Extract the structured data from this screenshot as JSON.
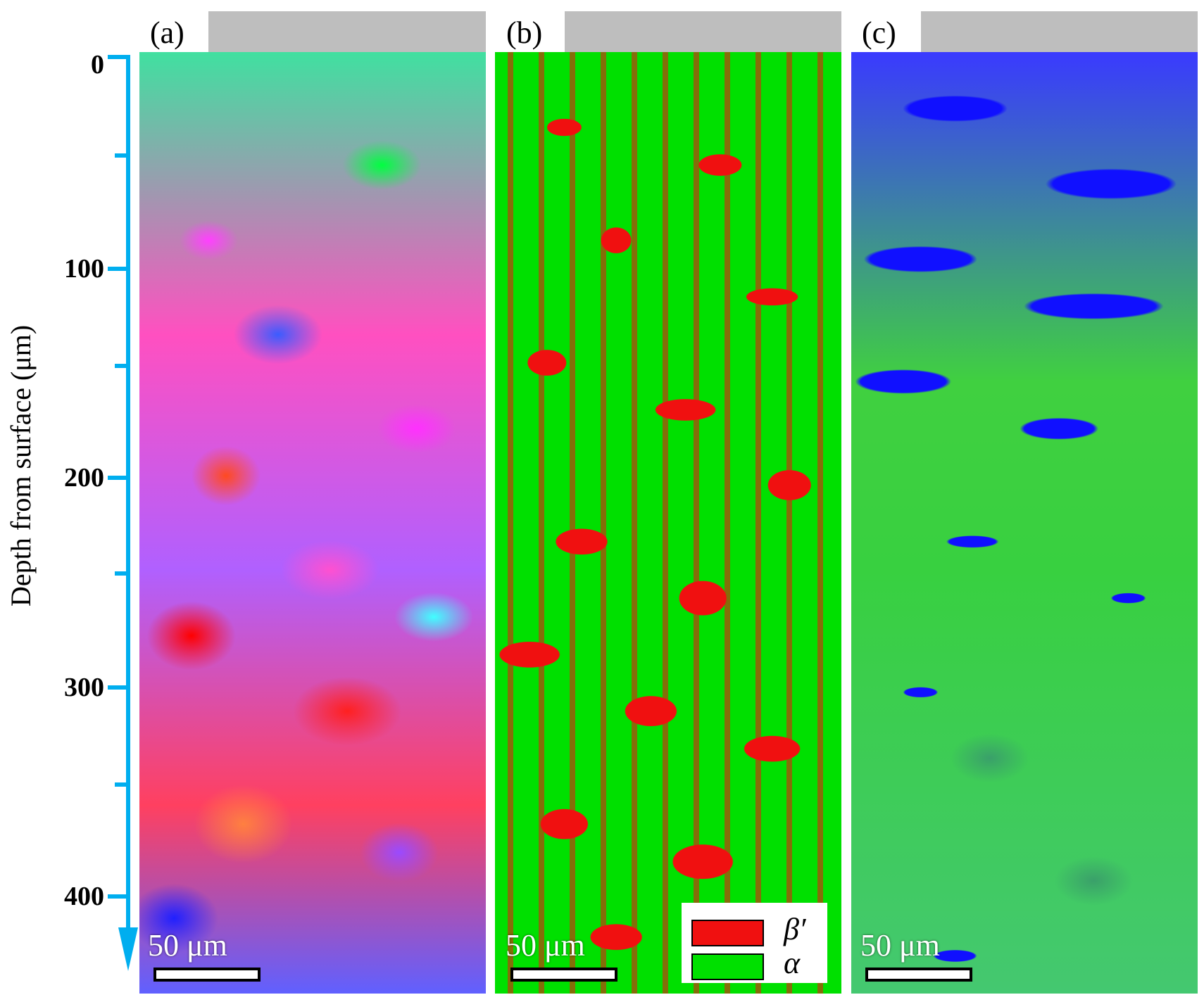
{
  "axis": {
    "title": "Depth from surface (μm)",
    "ticks": [
      "0",
      "100",
      "200",
      "300",
      "400"
    ]
  },
  "panels": [
    {
      "label": "(a)",
      "scale": "50 μm"
    },
    {
      "label": "(b)",
      "scale": "50 μm"
    },
    {
      "label": "(c)",
      "scale": "50 μm"
    }
  ],
  "legend": [
    {
      "label": "β′",
      "color": "#f01010"
    },
    {
      "label": "α",
      "color": "#00e000"
    }
  ],
  "colors": {
    "axis": "#00aeef",
    "surface": "#bebebe",
    "beta_phase": "#f01010",
    "alpha_phase": "#00e000",
    "blue_region": "#1010ff"
  }
}
